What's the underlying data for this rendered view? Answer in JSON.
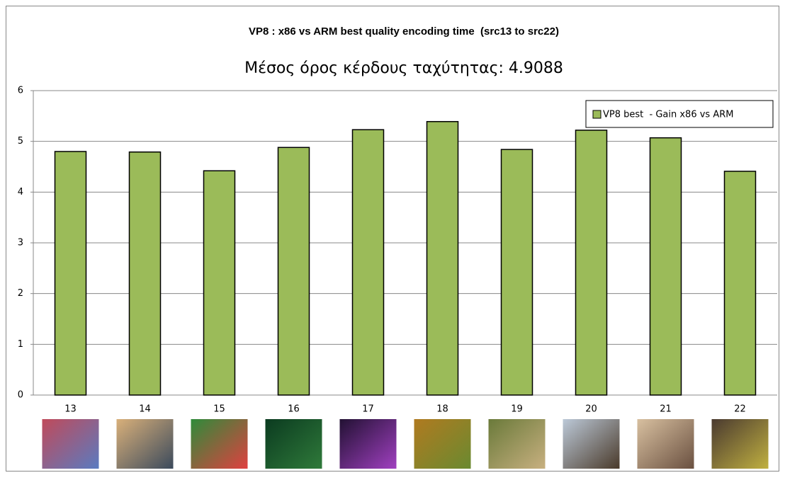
{
  "chart_data": {
    "type": "bar",
    "title": "VP8 : x86 vs ARM best quality encoding time  (src13 to src22)",
    "subtitle": "Μέσος όρος κέρδους ταχύτητας: 4.9088",
    "categories": [
      "13",
      "14",
      "15",
      "16",
      "17",
      "18",
      "19",
      "20",
      "21",
      "22"
    ],
    "series": [
      {
        "name": "VP8 best  - Gain x86 vs ARM",
        "color": "#9bbb59",
        "values": [
          4.8,
          4.79,
          4.42,
          4.88,
          5.23,
          5.39,
          4.84,
          5.22,
          5.07,
          4.41
        ]
      }
    ],
    "ylim": [
      0,
      6
    ],
    "yticks": [
      0,
      1,
      2,
      3,
      4,
      5,
      6
    ],
    "grid": true,
    "legend": "top-right"
  }
}
